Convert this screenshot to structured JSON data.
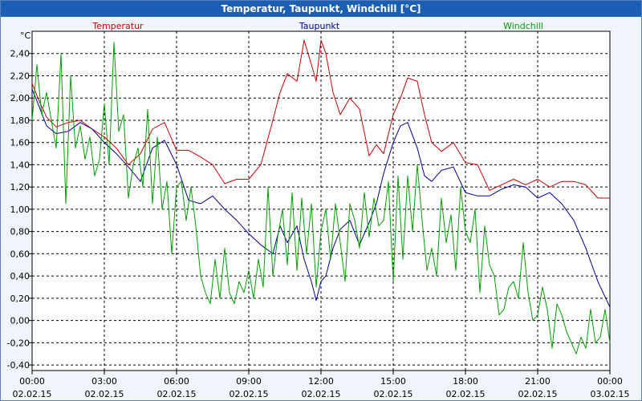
{
  "window": {
    "title": "Temperatur, Taupunkt, Windchill [°C]"
  },
  "chart_data": {
    "type": "line",
    "title": "Temperatur, Taupunkt, Windchill [°C]",
    "ylabel": "°C",
    "ylim": [
      -0.45,
      2.6
    ],
    "yticks": [
      -0.4,
      -0.2,
      0.0,
      0.2,
      0.4,
      0.6,
      0.8,
      1.0,
      1.2,
      1.4,
      1.6,
      1.8,
      2.0,
      2.2,
      2.4
    ],
    "ytick_labels": [
      "-0,40",
      "-0,20",
      "0,00",
      "0,20",
      "0,40",
      "0,60",
      "0,80",
      "1,00",
      "1,20",
      "1,40",
      "1,60",
      "1,80",
      "2,00",
      "2,20",
      "2,40"
    ],
    "xlim": [
      0,
      24
    ],
    "xticks": [
      0,
      3,
      6,
      9,
      12,
      15,
      18,
      21,
      24
    ],
    "xtick_labels": [
      [
        "00:00",
        "02.02.15"
      ],
      [
        "03:00",
        "02.02.15"
      ],
      [
        "06:00",
        "02.02.15"
      ],
      [
        "09:00",
        "02.02.15"
      ],
      [
        "12:00",
        "02.02.15"
      ],
      [
        "15:00",
        "02.02.15"
      ],
      [
        "18:00",
        "02.02.15"
      ],
      [
        "21:00",
        "02.02.15"
      ],
      [
        "00:00",
        "03.02.15"
      ]
    ],
    "grid": true,
    "series": [
      {
        "name": "Temperatur",
        "color": "#cc0000",
        "x": [
          0,
          0.3,
          0.6,
          1.0,
          1.5,
          2.0,
          2.5,
          3.0,
          3.5,
          4.0,
          4.5,
          5.0,
          5.5,
          6.0,
          6.5,
          7.0,
          7.5,
          8.0,
          8.5,
          9.0,
          9.5,
          10.0,
          10.3,
          10.6,
          11.0,
          11.3,
          11.6,
          11.8,
          12.0,
          12.2,
          12.5,
          12.8,
          13.2,
          13.6,
          14.0,
          14.3,
          14.6,
          15.0,
          15.3,
          15.6,
          16.0,
          16.3,
          16.6,
          17.0,
          17.5,
          18.0,
          18.5,
          19.0,
          19.5,
          20.0,
          20.5,
          21.0,
          21.5,
          22.0,
          22.5,
          23.0,
          23.5,
          24.0
        ],
        "y": [
          2.13,
          1.97,
          1.83,
          1.74,
          1.78,
          1.8,
          1.72,
          1.65,
          1.55,
          1.4,
          1.5,
          1.72,
          1.78,
          1.53,
          1.53,
          1.47,
          1.4,
          1.23,
          1.27,
          1.27,
          1.4,
          1.8,
          2.05,
          2.22,
          2.15,
          2.52,
          2.3,
          2.15,
          2.52,
          2.4,
          2.05,
          1.85,
          2.0,
          1.9,
          1.48,
          1.58,
          1.5,
          1.85,
          2.0,
          2.18,
          2.15,
          1.85,
          1.6,
          1.52,
          1.6,
          1.42,
          1.4,
          1.17,
          1.22,
          1.27,
          1.22,
          1.27,
          1.2,
          1.25,
          1.25,
          1.22,
          1.1,
          1.1
        ]
      },
      {
        "name": "Taupunkt",
        "color": "#000099",
        "x": [
          0,
          0.3,
          0.6,
          1.0,
          1.5,
          2.0,
          2.5,
          3.0,
          3.5,
          4.0,
          4.5,
          5.0,
          5.5,
          6.0,
          6.5,
          7.0,
          7.5,
          8.0,
          8.5,
          9.0,
          9.5,
          10.0,
          10.3,
          10.6,
          11.0,
          11.3,
          11.6,
          11.8,
          12.0,
          12.2,
          12.5,
          12.8,
          13.2,
          13.6,
          14.0,
          14.3,
          14.6,
          15.0,
          15.3,
          15.6,
          16.0,
          16.3,
          16.6,
          17.0,
          17.5,
          18.0,
          18.5,
          19.0,
          19.5,
          20.0,
          20.5,
          21.0,
          21.5,
          22.0,
          22.5,
          23.0,
          23.5,
          24.0
        ],
        "y": [
          2.08,
          1.92,
          1.75,
          1.68,
          1.7,
          1.78,
          1.72,
          1.6,
          1.5,
          1.38,
          1.25,
          1.55,
          1.62,
          1.4,
          1.08,
          1.05,
          1.12,
          1.0,
          0.9,
          0.78,
          0.68,
          0.6,
          0.85,
          0.7,
          0.85,
          0.55,
          0.35,
          0.18,
          0.35,
          0.4,
          0.65,
          0.82,
          0.9,
          0.68,
          0.88,
          1.05,
          1.32,
          1.6,
          1.75,
          1.78,
          1.55,
          1.3,
          1.25,
          1.35,
          1.38,
          1.15,
          1.12,
          1.12,
          1.18,
          1.22,
          1.2,
          1.1,
          1.15,
          1.05,
          0.9,
          0.65,
          0.35,
          0.12
        ]
      },
      {
        "name": "Windchill",
        "color": "#00a000",
        "x": [
          0,
          0.2,
          0.4,
          0.6,
          0.8,
          1.0,
          1.2,
          1.4,
          1.6,
          1.8,
          2.0,
          2.2,
          2.4,
          2.6,
          2.8,
          3.0,
          3.2,
          3.4,
          3.6,
          3.8,
          4.0,
          4.2,
          4.4,
          4.6,
          4.8,
          5.0,
          5.2,
          5.4,
          5.6,
          5.8,
          6.0,
          6.2,
          6.4,
          6.6,
          6.8,
          7.0,
          7.2,
          7.4,
          7.6,
          7.8,
          8.0,
          8.2,
          8.4,
          8.6,
          8.8,
          9.0,
          9.2,
          9.4,
          9.6,
          9.8,
          10.0,
          10.2,
          10.4,
          10.6,
          10.8,
          11.0,
          11.2,
          11.4,
          11.6,
          11.8,
          12.0,
          12.2,
          12.4,
          12.6,
          12.8,
          13.0,
          13.2,
          13.4,
          13.6,
          13.8,
          14.0,
          14.2,
          14.4,
          14.6,
          14.8,
          15.0,
          15.2,
          15.4,
          15.6,
          15.8,
          16.0,
          16.2,
          16.4,
          16.6,
          16.8,
          17.0,
          17.2,
          17.4,
          17.6,
          17.8,
          18.0,
          18.2,
          18.4,
          18.6,
          18.8,
          19.0,
          19.2,
          19.4,
          19.6,
          19.8,
          20.0,
          20.2,
          20.4,
          20.6,
          20.8,
          21.0,
          21.2,
          21.4,
          21.6,
          21.8,
          22.0,
          22.2,
          22.4,
          22.6,
          22.8,
          23.0,
          23.2,
          23.4,
          23.6,
          23.8,
          24.0
        ],
        "y": [
          1.8,
          2.3,
          1.85,
          2.05,
          1.8,
          1.55,
          2.4,
          1.05,
          2.2,
          1.55,
          1.75,
          1.45,
          1.65,
          1.3,
          1.45,
          1.95,
          1.4,
          2.5,
          1.7,
          1.85,
          1.1,
          1.4,
          1.55,
          1.2,
          1.9,
          1.05,
          1.65,
          1.0,
          1.25,
          0.6,
          1.2,
          1.25,
          0.9,
          1.2,
          0.85,
          0.4,
          0.25,
          0.15,
          0.55,
          0.2,
          0.65,
          0.25,
          0.15,
          0.35,
          0.25,
          0.45,
          0.2,
          0.55,
          0.3,
          1.2,
          0.4,
          0.75,
          1.0,
          0.5,
          1.15,
          0.45,
          1.1,
          0.6,
          1.05,
          0.3,
          0.8,
          1.0,
          0.55,
          1.05,
          0.7,
          0.35,
          1.05,
          0.9,
          0.65,
          1.15,
          0.75,
          1.1,
          0.85,
          0.9,
          1.25,
          0.35,
          1.3,
          0.55,
          1.3,
          0.8,
          1.4,
          0.9,
          0.45,
          0.65,
          0.4,
          1.1,
          0.7,
          0.95,
          0.45,
          1.2,
          0.8,
          0.7,
          1.0,
          0.25,
          0.85,
          0.5,
          0.4,
          0.05,
          0.1,
          0.3,
          0.35,
          0.2,
          0.7,
          0.25,
          0.0,
          0.05,
          0.3,
          0.1,
          -0.25,
          0.15,
          0.05,
          -0.1,
          -0.2,
          -0.3,
          -0.15,
          -0.25,
          0.1,
          -0.2,
          -0.15,
          0.1,
          -0.2
        ]
      }
    ],
    "legend": [
      "Temperatur",
      "Taupunkt",
      "Windchill"
    ],
    "legend_position": "top"
  }
}
